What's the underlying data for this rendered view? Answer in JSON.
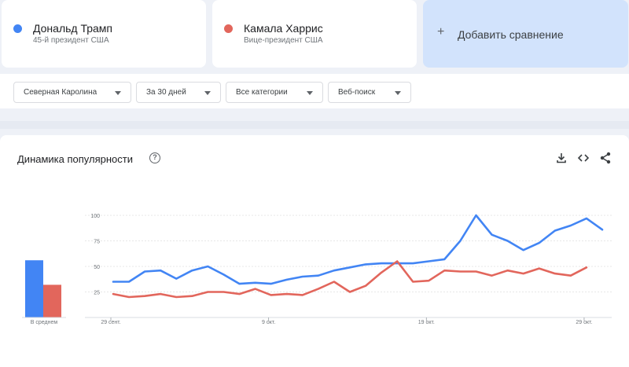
{
  "terms": [
    {
      "name": "Дональд Трамп",
      "subtitle": "45-й президент США",
      "color": "#4285f4"
    },
    {
      "name": "Камала Харрис",
      "subtitle": "Вице-президент США",
      "color": "#e2665c"
    }
  ],
  "add_comparison": {
    "label": "Добавить сравнение",
    "icon": "plus-icon"
  },
  "filters": {
    "region": "Северная Каролина",
    "period": "За 30 дней",
    "category": "Все категории",
    "search_type": "Веб-поиск"
  },
  "chart_section": {
    "title": "Динамика популярности",
    "icons": [
      "help-icon",
      "download-icon",
      "embed-icon",
      "share-icon"
    ]
  },
  "chart_data": {
    "type": "line",
    "title": "Динамика популярности",
    "x_tick_labels": [
      "29 сент.",
      "9 окт.",
      "19 окт.",
      "29 окт."
    ],
    "y_tick_labels": [
      "25",
      "50",
      "75",
      "100"
    ],
    "ylim": [
      0,
      100
    ],
    "grid": true,
    "x": [
      "29 сент.",
      "30 сент.",
      "1 окт.",
      "2 окт.",
      "3 окт.",
      "4 окт.",
      "5 окт.",
      "6 окт.",
      "7 окт.",
      "8 окт.",
      "9 окт.",
      "10 окт.",
      "11 окт.",
      "12 окт.",
      "13 окт.",
      "14 окт.",
      "15 окт.",
      "16 окт.",
      "17 окт.",
      "18 окт.",
      "19 окт.",
      "20 окт.",
      "21 окт.",
      "22 окт.",
      "23 окт.",
      "24 окт.",
      "25 окт.",
      "26 окт.",
      "27 окт.",
      "28 окт.",
      "29 окт.",
      "30 окт."
    ],
    "series": [
      {
        "name": "Дональд Трамп",
        "color": "#4285f4",
        "values": [
          35,
          35,
          45,
          46,
          38,
          46,
          50,
          42,
          33,
          34,
          33,
          37,
          40,
          41,
          46,
          49,
          52,
          53,
          53,
          53,
          55,
          57,
          75,
          100,
          81,
          75,
          66,
          73,
          85,
          90,
          97,
          86
        ]
      },
      {
        "name": "Камала Харрис",
        "color": "#e2665c",
        "values": [
          23,
          20,
          21,
          23,
          20,
          21,
          25,
          25,
          23,
          28,
          22,
          23,
          22,
          28,
          35,
          25,
          31,
          44,
          55,
          35,
          36,
          46,
          45,
          45,
          41,
          46,
          43,
          48,
          43,
          41,
          49,
          null
        ]
      }
    ],
    "averages": {
      "label": "В среднем",
      "values": [
        56,
        32
      ]
    }
  }
}
